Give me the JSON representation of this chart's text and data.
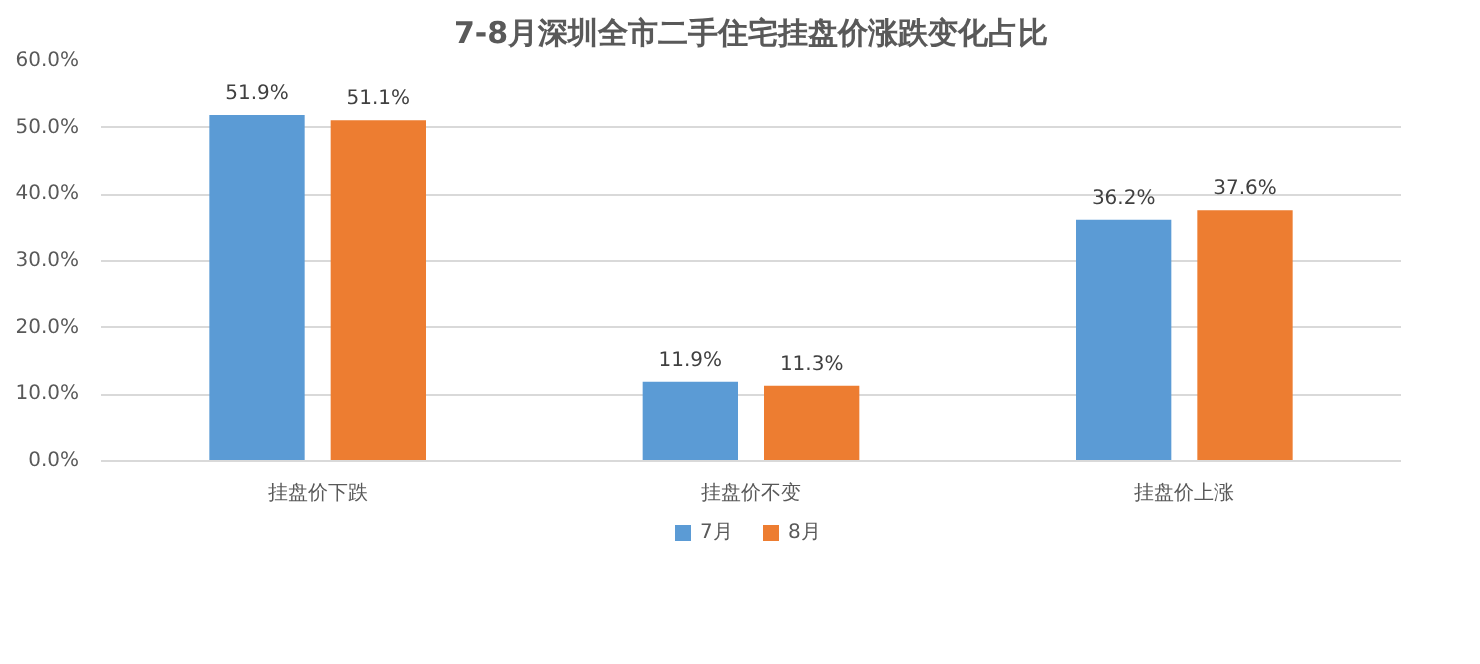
{
  "chart_data": {
    "type": "bar",
    "title": "7-8月深圳全市二手住宅挂盘价涨跌变化占比",
    "categories": [
      "挂盘价下跌",
      "挂盘价不变",
      "挂盘价上涨"
    ],
    "series": [
      {
        "name": "7月",
        "color": "#5b9bd5",
        "values": [
          51.9,
          11.9,
          36.2
        ],
        "value_labels": [
          "51.9%",
          "11.9%",
          "36.2%"
        ]
      },
      {
        "name": "8月",
        "color": "#ed7d31",
        "values": [
          51.1,
          11.3,
          37.6
        ],
        "value_labels": [
          "51.1%",
          "11.3%",
          "37.6%"
        ]
      }
    ],
    "ylim": [
      0,
      60
    ],
    "yticks": [
      {
        "value": 0,
        "label": "0.0%"
      },
      {
        "value": 10,
        "label": "10.0%"
      },
      {
        "value": 20,
        "label": "20.0%"
      },
      {
        "value": 30,
        "label": "30.0%"
      },
      {
        "value": 40,
        "label": "40.0%"
      },
      {
        "value": 50,
        "label": "50.0%"
      },
      {
        "value": 60,
        "label": "60.0%"
      }
    ],
    "grid": "y",
    "legend": "bottom"
  }
}
